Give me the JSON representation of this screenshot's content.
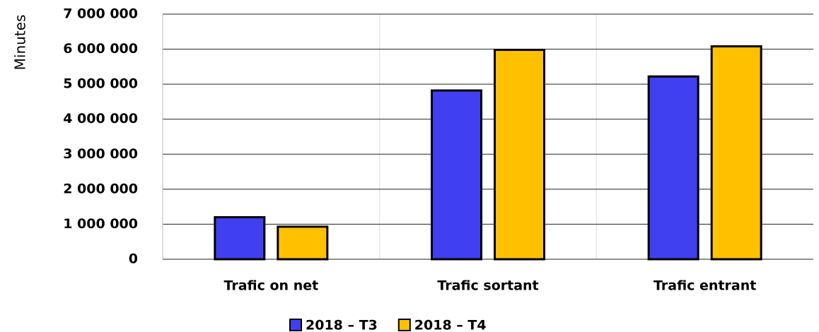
{
  "chart_data": {
    "type": "bar",
    "y_label": "Minutes",
    "categories": [
      "Trafic on net",
      "Trafic sortant",
      "Trafic entrant"
    ],
    "series": [
      {
        "name": "2018 – T3",
        "color": "#4040f0",
        "values": [
          1200000,
          4820000,
          5220000
        ]
      },
      {
        "name": "2018 – T4",
        "color": "#ffc000",
        "values": [
          930000,
          5980000,
          6080000
        ]
      }
    ],
    "ylim": [
      0,
      7000000
    ],
    "yticks": [
      0,
      {
        "value": 1000000,
        "label": "1 000 000"
      },
      {
        "value": 2000000,
        "label": "2 000 000"
      },
      {
        "value": 3000000,
        "label": "3 000 000"
      },
      {
        "value": 4000000,
        "label": "4 000 000"
      },
      {
        "value": 5000000,
        "label": "5 000 000"
      },
      {
        "value": 6000000,
        "label": "6 000 000"
      },
      {
        "value": 7000000,
        "label": "7 000 000"
      }
    ],
    "grid": true,
    "legend": "bottom"
  }
}
